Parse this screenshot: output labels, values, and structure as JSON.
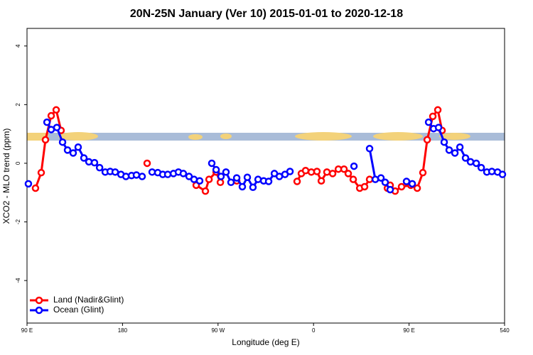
{
  "chart_data": {
    "type": "line",
    "title": "20N-25N January (Ver 10)   2015-01-01 to 2020-12-18",
    "x_label": "Longitude (deg E)",
    "y_label": "XCO2 - MLO trend (ppm)",
    "xlim": [
      90,
      540
    ],
    "ylim": [
      -5.45,
      4.6
    ],
    "xticks": [
      {
        "value": 90,
        "label": "90 E"
      },
      180,
      {
        "value": 270,
        "label": "90 W"
      },
      {
        "value": 360,
        "label": "0"
      },
      {
        "value": 450,
        "label": "90 E"
      },
      540
    ],
    "yticks": [
      -4,
      -2,
      0,
      2,
      4
    ],
    "legend": "bottom-left",
    "series": [
      {
        "name": "Land (Nadir&Glint)",
        "color": "#ff0000",
        "x": [
          98,
          103.4,
          107.4,
          112.8,
          117.5,
          122.1,
          null,
          203.2,
          null,
          249.4,
          258.1,
          261.5,
          268.2,
          272.2,
          null,
          287.6,
          null,
          344.5,
          348.5,
          352.5,
          357.9,
          363.2,
          367.3,
          372.6,
          378,
          383.4,
          388.7,
          392.7,
          397.4,
          403.5,
          408.1,
          412.8,
          null,
          429.6,
          432.2,
          436.9,
          442.9,
          451.6,
          457.7,
          463,
          467.1,
          472.4,
          477.1,
          481.1
        ],
        "values": [
          -0.85,
          -0.32,
          0.8,
          1.62,
          1.82,
          1.12,
          null,
          0.0,
          null,
          -0.75,
          -0.95,
          -0.55,
          -0.3,
          -0.65,
          null,
          -0.6,
          null,
          -0.62,
          -0.35,
          -0.25,
          -0.3,
          -0.28,
          -0.6,
          -0.3,
          -0.35,
          -0.2,
          -0.2,
          -0.35,
          -0.55,
          -0.85,
          -0.8,
          -0.55,
          null,
          -0.85,
          -0.75,
          -0.95,
          -0.8,
          -0.75,
          -0.85,
          -0.32,
          0.8,
          1.6,
          1.82,
          1.12
        ]
      },
      {
        "name": "Ocean (Glint)",
        "color": "#0000ff",
        "x": [
          91.3,
          null,
          108.8,
          112.8,
          118.1,
          123.5,
          128.2,
          133.5,
          138.2,
          143.6,
          148.3,
          153.6,
          158.4,
          163.7,
          168.4,
          173.1,
          178.5,
          183.2,
          188.5,
          193.1,
          198.5,
          null,
          207.9,
          213.2,
          217.9,
          222.6,
          228,
          232.7,
          237.3,
          242.7,
          247.4,
          252.7,
          null,
          264.1,
          268.2,
          272.8,
          277.5,
          282.2,
          287.6,
          292.9,
          297.6,
          302.9,
          307.7,
          313,
          317.7,
          323.1,
          327.8,
          333.1,
          337.8,
          null,
          398.1,
          null,
          412.8,
          418.2,
          423.5,
          427.5,
          432.2,
          null,
          447.6,
          453,
          null,
          468.4,
          473.1,
          477.8,
          483.1,
          487.8,
          493.2,
          497.9,
          503.2,
          507.9,
          513.3,
          518,
          523.3,
          528,
          533.4,
          538
        ],
        "values": [
          -0.7,
          null,
          1.4,
          1.15,
          1.22,
          0.72,
          0.45,
          0.35,
          0.55,
          0.18,
          0.05,
          0.02,
          -0.15,
          -0.3,
          -0.28,
          -0.3,
          -0.38,
          -0.45,
          -0.42,
          -0.4,
          -0.45,
          null,
          -0.3,
          -0.32,
          -0.38,
          -0.38,
          -0.35,
          -0.3,
          -0.35,
          -0.45,
          -0.55,
          -0.6,
          null,
          0.0,
          -0.22,
          -0.45,
          -0.3,
          -0.65,
          -0.5,
          -0.8,
          -0.48,
          -0.82,
          -0.55,
          -0.6,
          -0.62,
          -0.35,
          -0.45,
          -0.38,
          -0.28,
          null,
          -0.1,
          null,
          0.5,
          -0.55,
          -0.5,
          -0.65,
          -0.9,
          null,
          -0.62,
          -0.7,
          null,
          1.4,
          1.18,
          1.22,
          0.72,
          0.45,
          0.35,
          0.55,
          0.18,
          0.05,
          0.0,
          -0.15,
          -0.3,
          -0.28,
          -0.3,
          -0.38
        ]
      }
    ]
  }
}
